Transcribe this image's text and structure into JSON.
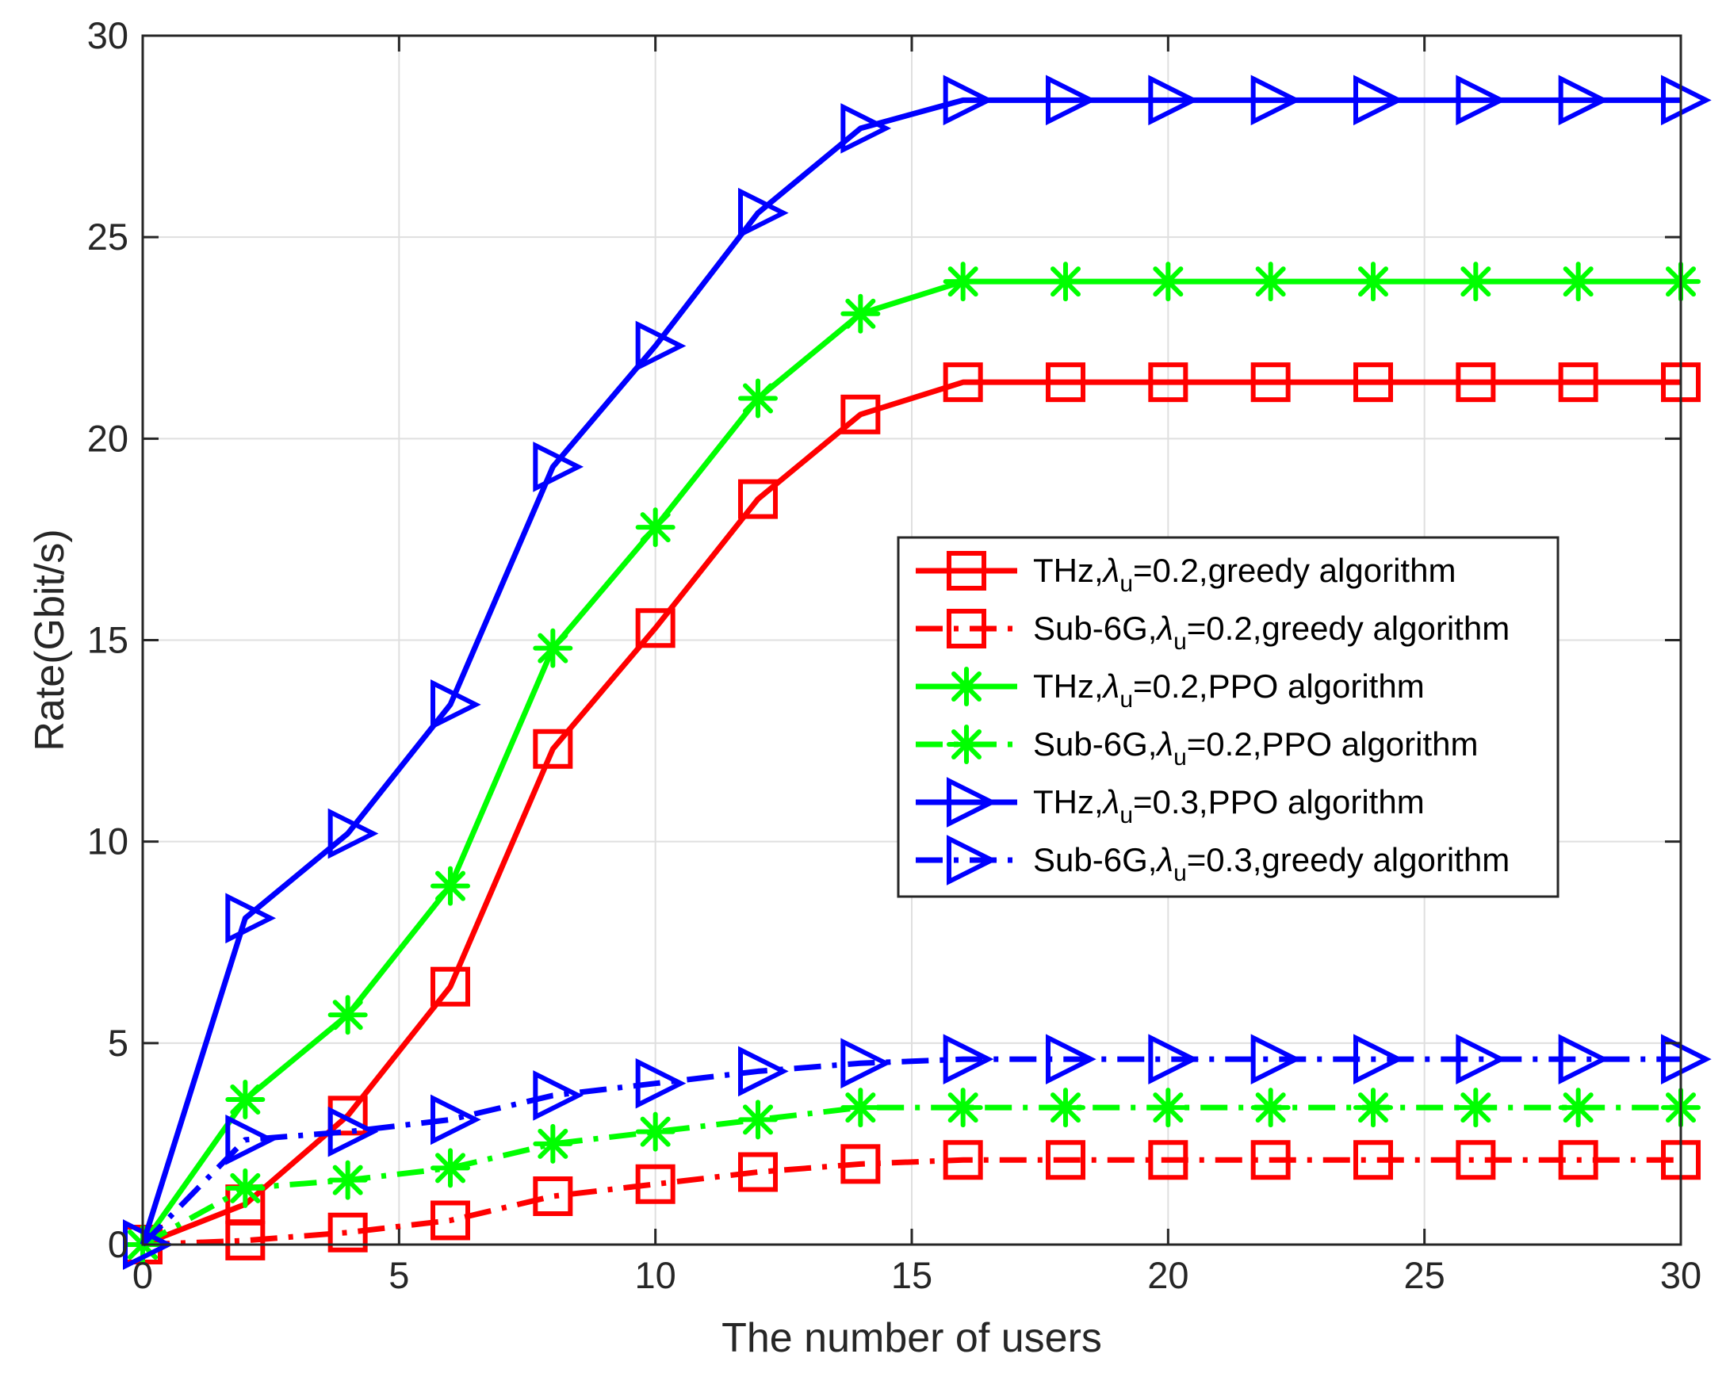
{
  "chart_data": {
    "type": "line",
    "title": "",
    "xlabel": "The number of users",
    "ylabel": "Rate(Gbit/s)",
    "xlim": [
      0,
      30
    ],
    "ylim": [
      0,
      30
    ],
    "xticks": [
      0,
      5,
      10,
      15,
      20,
      25,
      30
    ],
    "yticks": [
      0,
      5,
      10,
      15,
      20,
      25,
      30
    ],
    "grid": true,
    "legend_position": "center-right",
    "x": [
      0,
      2,
      4,
      6,
      8,
      10,
      12,
      14,
      16,
      18,
      20,
      22,
      24,
      26,
      28,
      30
    ],
    "series": [
      {
        "name": "THz,λu=0.2,greedy algorithm",
        "legend_prefix": "THz,",
        "legend_symbol": "λ",
        "legend_subscript": "u",
        "legend_suffix": "=0.2,greedy algorithm",
        "color": "#ff0000",
        "line_style": "solid",
        "marker": "square",
        "values": [
          0,
          1.0,
          3.2,
          6.4,
          12.3,
          15.3,
          18.5,
          20.6,
          21.4,
          21.4,
          21.4,
          21.4,
          21.4,
          21.4,
          21.4,
          21.4
        ]
      },
      {
        "name": "Sub-6G,λu=0.2,greedy algorithm",
        "legend_prefix": "Sub-6G,",
        "legend_symbol": "λ",
        "legend_subscript": "u",
        "legend_suffix": "=0.2,greedy algorithm",
        "color": "#ff0000",
        "line_style": "dashdot",
        "marker": "square",
        "values": [
          0,
          0.1,
          0.3,
          0.6,
          1.2,
          1.5,
          1.8,
          2.0,
          2.1,
          2.1,
          2.1,
          2.1,
          2.1,
          2.1,
          2.1,
          2.1
        ]
      },
      {
        "name": "THz,λu=0.2,PPO algorithm",
        "legend_prefix": "THz,",
        "legend_symbol": "λ",
        "legend_subscript": "u",
        "legend_suffix": "=0.2,PPO algorithm",
        "color": "#00ff00",
        "line_style": "solid",
        "marker": "asterisk",
        "values": [
          0,
          3.6,
          5.7,
          8.9,
          14.8,
          17.8,
          21.0,
          23.1,
          23.9,
          23.9,
          23.9,
          23.9,
          23.9,
          23.9,
          23.9,
          23.9
        ]
      },
      {
        "name": "Sub-6G,λu=0.2,PPO algorithm",
        "legend_prefix": "Sub-6G,",
        "legend_symbol": "λ",
        "legend_subscript": "u",
        "legend_suffix": "=0.2,PPO algorithm",
        "color": "#00ff00",
        "line_style": "dashdot",
        "marker": "asterisk",
        "values": [
          0,
          1.4,
          1.6,
          1.9,
          2.5,
          2.8,
          3.1,
          3.4,
          3.4,
          3.4,
          3.4,
          3.4,
          3.4,
          3.4,
          3.4,
          3.4
        ]
      },
      {
        "name": "THz,λu=0.3,PPO algorithm",
        "legend_prefix": "THz,",
        "legend_symbol": "λ",
        "legend_subscript": "u",
        "legend_suffix": "=0.3,PPO algorithm",
        "color": "#0000ff",
        "line_style": "solid",
        "marker": "triangle-right",
        "values": [
          0,
          8.1,
          10.2,
          13.4,
          19.3,
          22.3,
          25.6,
          27.7,
          28.4,
          28.4,
          28.4,
          28.4,
          28.4,
          28.4,
          28.4,
          28.4
        ]
      },
      {
        "name": "Sub-6G,λu=0.3,greedy algorithm",
        "legend_prefix": "Sub-6G,",
        "legend_symbol": "λ",
        "legend_subscript": "u",
        "legend_suffix": "=0.3,greedy algorithm",
        "color": "#0000ff",
        "line_style": "dashdot",
        "marker": "triangle-right",
        "values": [
          0,
          2.6,
          2.8,
          3.1,
          3.7,
          4.0,
          4.3,
          4.5,
          4.6,
          4.6,
          4.6,
          4.6,
          4.6,
          4.6,
          4.6,
          4.6
        ]
      }
    ]
  }
}
